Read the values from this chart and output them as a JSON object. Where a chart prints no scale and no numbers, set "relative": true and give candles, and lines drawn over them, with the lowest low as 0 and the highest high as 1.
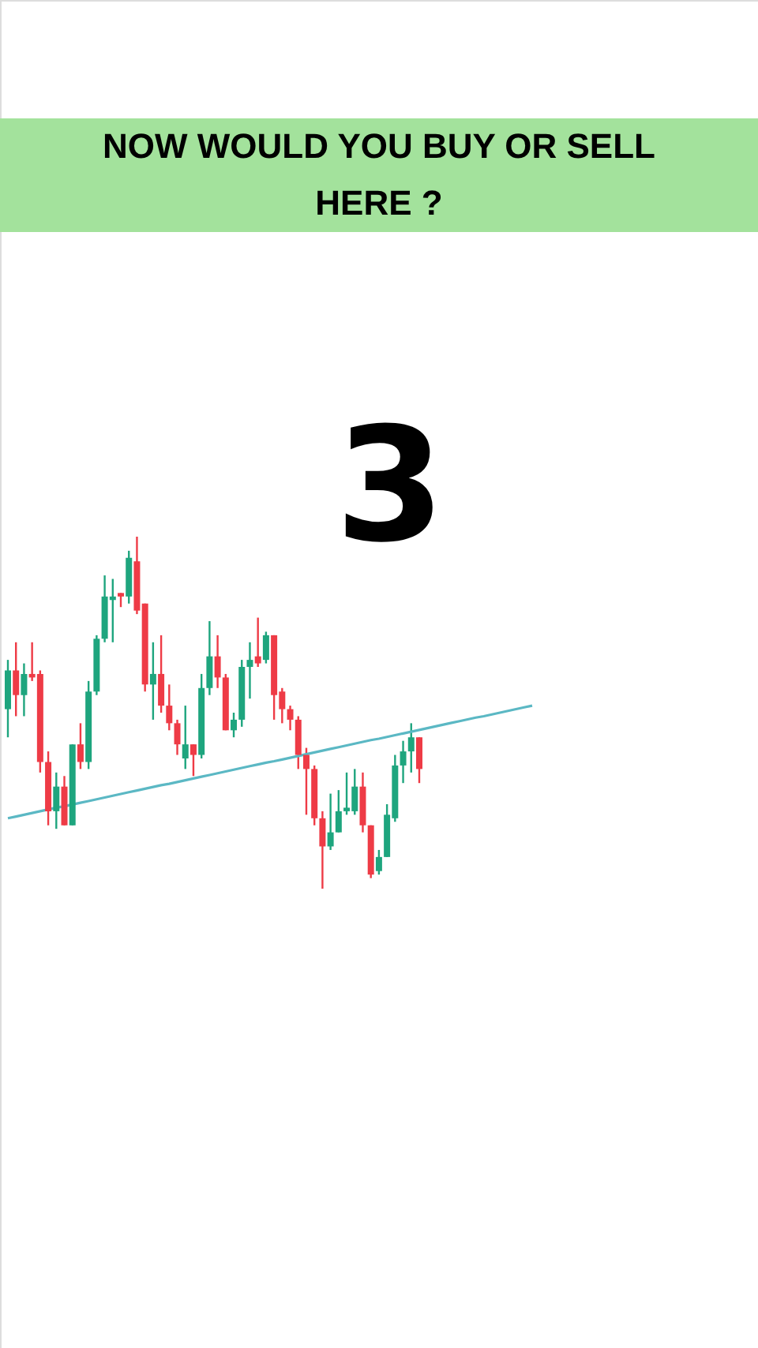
{
  "chart_data": {
    "type": "candlestick",
    "title": "NOW WOULD YOU BUY OR SELL HERE ?",
    "relative": true,
    "annotations": [
      "3"
    ],
    "categories": [
      null,
      null,
      null,
      null,
      null,
      null,
      null,
      null,
      null,
      null,
      null,
      null,
      null,
      null,
      null,
      null,
      null,
      null,
      null,
      null,
      null,
      null,
      null,
      null,
      null,
      null,
      null,
      null,
      null,
      null,
      null,
      null,
      null,
      null,
      null,
      null,
      null,
      null,
      null,
      null,
      null,
      null,
      null,
      null,
      null,
      null,
      null,
      null,
      null,
      null,
      null,
      null,
      null,
      null,
      null,
      null,
      null,
      null,
      null,
      null,
      null,
      null,
      null,
      null,
      null,
      null
    ],
    "ohlc": [
      [
        0.51,
        0.65,
        0.43,
        0.62
      ],
      [
        0.62,
        0.7,
        0.49,
        0.55
      ],
      [
        0.55,
        0.64,
        0.49,
        0.61
      ],
      [
        0.61,
        0.7,
        0.59,
        0.6
      ],
      [
        0.61,
        0.62,
        0.33,
        0.36
      ],
      [
        0.36,
        0.39,
        0.18,
        0.22
      ],
      [
        0.22,
        0.33,
        0.17,
        0.29
      ],
      [
        0.29,
        0.32,
        0.18,
        0.18
      ],
      [
        0.18,
        0.41,
        0.18,
        0.41
      ],
      [
        0.41,
        0.47,
        0.34,
        0.36
      ],
      [
        0.36,
        0.59,
        0.34,
        0.56
      ],
      [
        0.56,
        0.72,
        0.55,
        0.71
      ],
      [
        0.71,
        0.89,
        0.7,
        0.83
      ],
      [
        0.82,
        0.88,
        0.7,
        0.83
      ],
      [
        0.84,
        0.84,
        0.8,
        0.83
      ],
      [
        0.83,
        0.96,
        0.81,
        0.94
      ],
      [
        0.93,
        1.0,
        0.78,
        0.79
      ],
      [
        0.81,
        0.81,
        0.56,
        0.58
      ],
      [
        0.58,
        0.7,
        0.48,
        0.61
      ],
      [
        0.61,
        0.72,
        0.5,
        0.52
      ],
      [
        0.52,
        0.58,
        0.45,
        0.47
      ],
      [
        0.47,
        0.48,
        0.38,
        0.41
      ],
      [
        0.37,
        0.52,
        0.34,
        0.41
      ],
      [
        0.41,
        0.41,
        0.32,
        0.38
      ],
      [
        0.38,
        0.61,
        0.37,
        0.57
      ],
      [
        0.57,
        0.76,
        0.55,
        0.66
      ],
      [
        0.66,
        0.72,
        0.57,
        0.6
      ],
      [
        0.6,
        0.61,
        0.45,
        0.45
      ],
      [
        0.45,
        0.5,
        0.43,
        0.48
      ],
      [
        0.48,
        0.65,
        0.46,
        0.63
      ],
      [
        0.63,
        0.7,
        0.54,
        0.65
      ],
      [
        0.66,
        0.77,
        0.63,
        0.64
      ],
      [
        0.65,
        0.73,
        0.64,
        0.72
      ],
      [
        0.72,
        0.72,
        0.48,
        0.55
      ],
      [
        0.56,
        0.57,
        0.47,
        0.51
      ],
      [
        0.51,
        0.52,
        0.45,
        0.48
      ],
      [
        0.48,
        0.49,
        0.34,
        0.38
      ],
      [
        0.38,
        0.4,
        0.21,
        0.34
      ],
      [
        0.34,
        0.35,
        0.18,
        0.2
      ],
      [
        0.2,
        0.22,
        0.0,
        0.12
      ],
      [
        0.12,
        0.27,
        0.11,
        0.16
      ],
      [
        0.16,
        0.28,
        0.16,
        0.22
      ],
      [
        0.22,
        0.33,
        0.21,
        0.23
      ],
      [
        0.22,
        0.34,
        0.21,
        0.29
      ],
      [
        0.29,
        0.33,
        0.16,
        0.18
      ],
      [
        0.18,
        0.18,
        0.03,
        0.04
      ],
      [
        0.05,
        0.11,
        0.04,
        0.09
      ],
      [
        0.09,
        0.24,
        0.09,
        0.21
      ],
      [
        0.2,
        0.38,
        0.19,
        0.35
      ],
      [
        0.35,
        0.42,
        0.3,
        0.39
      ],
      [
        0.39,
        0.47,
        0.33,
        0.43
      ],
      [
        0.43,
        0.43,
        0.3,
        0.34
      ],
      null,
      null,
      null,
      null,
      null,
      null,
      null,
      null,
      null,
      null,
      null,
      null,
      null,
      null
    ],
    "series": [
      {
        "type": "line",
        "color": "#5bb8c4",
        "values": [
          0.2,
          0.205,
          0.21,
          0.215,
          0.22,
          0.225,
          0.23,
          0.234,
          0.239,
          0.244,
          0.249,
          0.254,
          0.259,
          0.264,
          0.269,
          0.274,
          0.279,
          0.284,
          0.289,
          0.294,
          0.298,
          0.303,
          0.308,
          0.313,
          0.318,
          0.323,
          0.328,
          0.333,
          0.338,
          0.343,
          0.348,
          0.353,
          0.358,
          0.362,
          0.367,
          0.372,
          0.377,
          0.382,
          0.387,
          0.392,
          0.397,
          0.402,
          0.407,
          0.412,
          0.417,
          0.422,
          0.426,
          0.431,
          0.436,
          0.441,
          0.446,
          0.451,
          0.456,
          0.461,
          0.466,
          0.471,
          0.476,
          0.481,
          0.486,
          0.49,
          0.495,
          0.5,
          0.505,
          0.51,
          0.515,
          0.52
        ]
      }
    ]
  }
}
